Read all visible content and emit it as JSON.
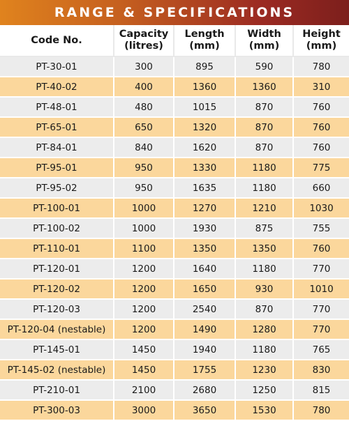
{
  "title": "RANGE & SPECIFICATIONS",
  "colors": {
    "title_gradient_start": "#e0831e",
    "title_gradient_end": "#7c1f1c",
    "row_grey": "#ececec",
    "row_peach": "#fbd79c"
  },
  "headers": [
    {
      "line1": "Code No.",
      "line2": ""
    },
    {
      "line1": "Capacity",
      "line2": "(litres)"
    },
    {
      "line1": "Length",
      "line2": "(mm)"
    },
    {
      "line1": "Width",
      "line2": "(mm)"
    },
    {
      "line1": "Height",
      "line2": "(mm)"
    }
  ],
  "rows": [
    [
      "PT-30-01",
      "300",
      "895",
      "590",
      "780"
    ],
    [
      "PT-40-02",
      "400",
      "1360",
      "1360",
      "310"
    ],
    [
      "PT-48-01",
      "480",
      "1015",
      "870",
      "760"
    ],
    [
      "PT-65-01",
      "650",
      "1320",
      "870",
      "760"
    ],
    [
      "PT-84-01",
      "840",
      "1620",
      "870",
      "760"
    ],
    [
      "PT-95-01",
      "950",
      "1330",
      "1180",
      "775"
    ],
    [
      "PT-95-02",
      "950",
      "1635",
      "1180",
      "660"
    ],
    [
      "PT-100-01",
      "1000",
      "1270",
      "1210",
      "1030"
    ],
    [
      "PT-100-02",
      "1000",
      "1930",
      "875",
      "755"
    ],
    [
      "PT-110-01",
      "1100",
      "1350",
      "1350",
      "760"
    ],
    [
      "PT-120-01",
      "1200",
      "1640",
      "1180",
      "770"
    ],
    [
      "PT-120-02",
      "1200",
      "1650",
      "930",
      "1010"
    ],
    [
      "PT-120-03",
      "1200",
      "2540",
      "870",
      "770"
    ],
    [
      "PT-120-04 (nestable)",
      "1200",
      "1490",
      "1280",
      "770"
    ],
    [
      "PT-145-01",
      "1450",
      "1940",
      "1180",
      "765"
    ],
    [
      "PT-145-02 (nestable)",
      "1450",
      "1755",
      "1230",
      "830"
    ],
    [
      "PT-210-01",
      "2100",
      "2680",
      "1250",
      "815"
    ],
    [
      "PT-300-03",
      "3000",
      "3650",
      "1530",
      "780"
    ]
  ]
}
